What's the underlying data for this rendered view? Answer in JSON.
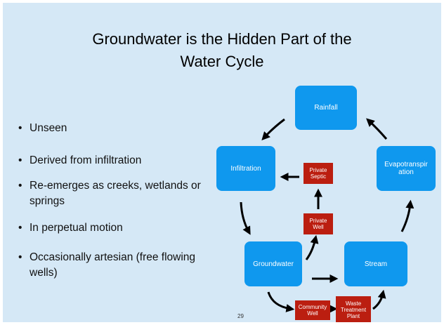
{
  "title": [
    "Groundwater is the Hidden Part of the",
    "Water Cycle"
  ],
  "bullets": [
    "Unseen",
    "Derived from infiltration",
    "Re-emerges as creeks, wetlands or springs",
    "In perpetual motion",
    "Occasionally artesian (free flowing wells)"
  ],
  "nodes": [
    {
      "label": [
        "Rainfall"
      ]
    },
    {
      "label": [
        "Infiltration"
      ]
    },
    {
      "label": [
        "Evapotranspir",
        "ation"
      ]
    },
    {
      "label": [
        "Groundwater"
      ]
    },
    {
      "label": [
        "Stream"
      ]
    }
  ],
  "sources": [
    {
      "label": [
        "Private",
        "Septic"
      ]
    },
    {
      "label": [
        "Private",
        "Well"
      ]
    },
    {
      "label": [
        "Community",
        "Well"
      ]
    },
    {
      "label": [
        "Waste",
        "Treatment",
        "Plant"
      ]
    }
  ],
  "page_number": "29"
}
